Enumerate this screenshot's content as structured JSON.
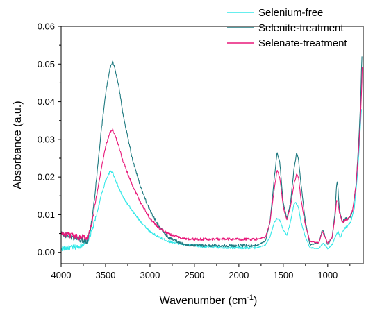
{
  "chart_data": {
    "type": "line",
    "xlabel": "Wavenumber (cm",
    "xlabel_sup": "-1",
    "xlabel_end": ")",
    "ylabel": "Absorbance (a.u.)",
    "xlim": [
      4000,
      600
    ],
    "x_reversed": true,
    "ylim": [
      -0.003,
      0.06
    ],
    "xticks": [
      4000,
      3500,
      3000,
      2500,
      2000,
      1500,
      1000
    ],
    "xtick_labels": [
      "4000",
      "3500",
      "3000",
      "2500",
      "2000",
      "1500",
      "1000"
    ],
    "yticks": [
      0,
      0.01,
      0.02,
      0.03,
      0.04,
      0.05,
      0.06
    ],
    "ytick_labels": [
      "0.00",
      "0.01",
      "0.02",
      "0.03",
      "0.04",
      "0.05",
      "0.06"
    ],
    "grid": false,
    "legend_position": "top-right",
    "series": [
      {
        "name": "Selenium-free",
        "color": "#33e8e8",
        "noise": 0.0006,
        "points": [
          [
            4000,
            0.001
          ],
          [
            3800,
            0.0015
          ],
          [
            3700,
            0.003
          ],
          [
            3650,
            0.006
          ],
          [
            3600,
            0.01
          ],
          [
            3550,
            0.015
          ],
          [
            3500,
            0.019
          ],
          [
            3450,
            0.0215
          ],
          [
            3420,
            0.0213
          ],
          [
            3400,
            0.02
          ],
          [
            3350,
            0.017
          ],
          [
            3300,
            0.0145
          ],
          [
            3200,
            0.011
          ],
          [
            3100,
            0.008
          ],
          [
            3000,
            0.0055
          ],
          [
            2900,
            0.004
          ],
          [
            2800,
            0.003
          ],
          [
            2600,
            0.002
          ],
          [
            2400,
            0.0015
          ],
          [
            2200,
            0.0013
          ],
          [
            2000,
            0.0012
          ],
          [
            1800,
            0.0012
          ],
          [
            1700,
            0.002
          ],
          [
            1650,
            0.004
          ],
          [
            1600,
            0.008
          ],
          [
            1570,
            0.009
          ],
          [
            1540,
            0.0085
          ],
          [
            1500,
            0.006
          ],
          [
            1460,
            0.0045
          ],
          [
            1420,
            0.008
          ],
          [
            1380,
            0.0128
          ],
          [
            1360,
            0.0132
          ],
          [
            1330,
            0.012
          ],
          [
            1300,
            0.008
          ],
          [
            1250,
            0.004
          ],
          [
            1200,
            0.0012
          ],
          [
            1100,
            0.001
          ],
          [
            1050,
            0.0025
          ],
          [
            1000,
            0.001
          ],
          [
            950,
            0.002
          ],
          [
            900,
            0.005
          ],
          [
            880,
            0.0055
          ],
          [
            860,
            0.004
          ],
          [
            820,
            0.006
          ],
          [
            780,
            0.007
          ],
          [
            740,
            0.008
          ],
          [
            700,
            0.012
          ],
          [
            660,
            0.022
          ],
          [
            640,
            0.03
          ],
          [
            630,
            0.034
          ],
          [
            620,
            0.038
          ]
        ]
      },
      {
        "name": "Selenite-treatment",
        "color": "#1f7a80",
        "noise": 0.0007,
        "points": [
          [
            4000,
            0.005
          ],
          [
            3800,
            0.0035
          ],
          [
            3700,
            0.003
          ],
          [
            3650,
            0.009
          ],
          [
            3600,
            0.02
          ],
          [
            3550,
            0.032
          ],
          [
            3500,
            0.042
          ],
          [
            3450,
            0.049
          ],
          [
            3420,
            0.0505
          ],
          [
            3400,
            0.0495
          ],
          [
            3350,
            0.044
          ],
          [
            3300,
            0.036
          ],
          [
            3200,
            0.025
          ],
          [
            3100,
            0.017
          ],
          [
            3000,
            0.011
          ],
          [
            2900,
            0.007
          ],
          [
            2800,
            0.004
          ],
          [
            2600,
            0.002
          ],
          [
            2400,
            0.0018
          ],
          [
            2200,
            0.0018
          ],
          [
            2000,
            0.0018
          ],
          [
            1800,
            0.0018
          ],
          [
            1700,
            0.003
          ],
          [
            1650,
            0.008
          ],
          [
            1600,
            0.02
          ],
          [
            1570,
            0.0265
          ],
          [
            1540,
            0.024
          ],
          [
            1500,
            0.013
          ],
          [
            1460,
            0.009
          ],
          [
            1420,
            0.013
          ],
          [
            1380,
            0.022
          ],
          [
            1350,
            0.0265
          ],
          [
            1330,
            0.025
          ],
          [
            1300,
            0.018
          ],
          [
            1250,
            0.008
          ],
          [
            1200,
            0.002
          ],
          [
            1100,
            0.0025
          ],
          [
            1060,
            0.006
          ],
          [
            1040,
            0.005
          ],
          [
            1000,
            0.002
          ],
          [
            950,
            0.004
          ],
          [
            920,
            0.01
          ],
          [
            900,
            0.018
          ],
          [
            890,
            0.0187
          ],
          [
            870,
            0.012
          ],
          [
            840,
            0.008
          ],
          [
            800,
            0.009
          ],
          [
            760,
            0.009
          ],
          [
            720,
            0.011
          ],
          [
            680,
            0.018
          ],
          [
            650,
            0.03
          ],
          [
            630,
            0.04
          ],
          [
            620,
            0.048
          ],
          [
            615,
            0.052
          ]
        ]
      },
      {
        "name": "Selenate-treatment",
        "color": "#e8197a",
        "noise": 0.0007,
        "points": [
          [
            4000,
            0.005
          ],
          [
            3800,
            0.004
          ],
          [
            3700,
            0.004
          ],
          [
            3650,
            0.008
          ],
          [
            3600,
            0.015
          ],
          [
            3550,
            0.022
          ],
          [
            3500,
            0.028
          ],
          [
            3450,
            0.032
          ],
          [
            3420,
            0.0325
          ],
          [
            3400,
            0.0315
          ],
          [
            3350,
            0.028
          ],
          [
            3300,
            0.024
          ],
          [
            3200,
            0.018
          ],
          [
            3100,
            0.013
          ],
          [
            3000,
            0.009
          ],
          [
            2900,
            0.0065
          ],
          [
            2800,
            0.005
          ],
          [
            2600,
            0.0035
          ],
          [
            2400,
            0.0035
          ],
          [
            2200,
            0.0035
          ],
          [
            2000,
            0.0035
          ],
          [
            1800,
            0.0035
          ],
          [
            1700,
            0.004
          ],
          [
            1650,
            0.008
          ],
          [
            1600,
            0.017
          ],
          [
            1570,
            0.0218
          ],
          [
            1540,
            0.02
          ],
          [
            1500,
            0.012
          ],
          [
            1460,
            0.0085
          ],
          [
            1420,
            0.012
          ],
          [
            1380,
            0.018
          ],
          [
            1350,
            0.0208
          ],
          [
            1330,
            0.02
          ],
          [
            1300,
            0.014
          ],
          [
            1250,
            0.007
          ],
          [
            1200,
            0.003
          ],
          [
            1100,
            0.0025
          ],
          [
            1060,
            0.0055
          ],
          [
            1040,
            0.0045
          ],
          [
            1000,
            0.0025
          ],
          [
            950,
            0.004
          ],
          [
            920,
            0.009
          ],
          [
            900,
            0.0135
          ],
          [
            890,
            0.014
          ],
          [
            870,
            0.011
          ],
          [
            840,
            0.008
          ],
          [
            800,
            0.0085
          ],
          [
            760,
            0.009
          ],
          [
            720,
            0.011
          ],
          [
            680,
            0.018
          ],
          [
            650,
            0.028
          ],
          [
            630,
            0.036
          ],
          [
            620,
            0.042
          ],
          [
            612,
            0.049
          ]
        ]
      }
    ]
  }
}
